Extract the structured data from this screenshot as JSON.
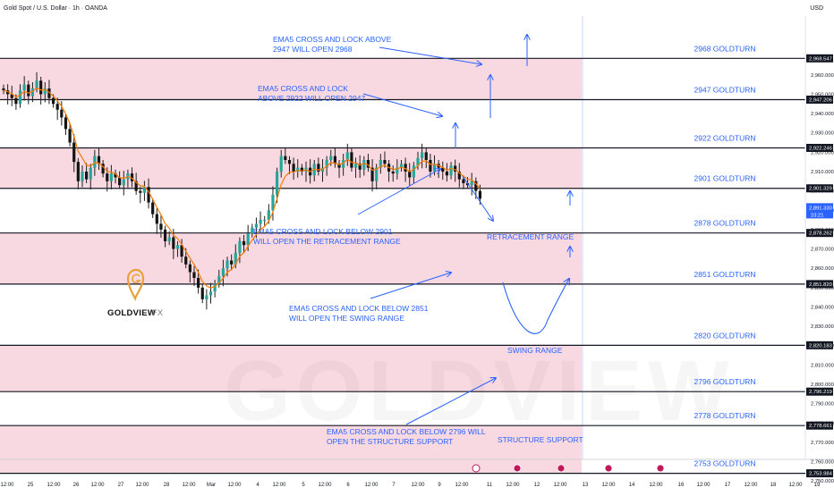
{
  "header": {
    "symbol": "Gold Spot / U.S. Dollar · 1h · OANDA",
    "currency": "USD"
  },
  "colors": {
    "zone": "#f9d9e1",
    "line": "#131722",
    "label": "#2962ff",
    "up": "#26a69a",
    "down": "#141414",
    "candle": "#1f1f1f",
    "ema": "#f57c00",
    "price_tag": "#2962ff"
  },
  "chart_data": {
    "type": "candlestick",
    "title": "Gold Spot / U.S. Dollar · 1h · OANDA",
    "ylim": [
      2748,
      2980
    ],
    "y_ticks": [
      2750,
      2760,
      2770,
      2780,
      2790,
      2800,
      2810,
      2820,
      2830,
      2840,
      2850,
      2860,
      2870,
      2880,
      2890,
      2900,
      2910,
      2920,
      2930,
      2940,
      2950,
      2960
    ],
    "x_ticks": [
      "12:00",
      "25",
      "12:00",
      "26",
      "12:00",
      "27",
      "12:00",
      "28",
      "12:00",
      "Mar",
      "12:00",
      "4",
      "12:00",
      "5",
      "12:00",
      "6",
      "12:00",
      "7",
      "12:00",
      "9",
      "12:00",
      "11",
      "12:00",
      "12",
      "12:00",
      "13",
      "12:00",
      "14",
      "12:00",
      "16",
      "12:00",
      "17",
      "12:00",
      "18",
      "12:00",
      "19",
      "12:00"
    ],
    "levels": [
      {
        "value": 2968.547,
        "tag": "2,968.547",
        "label": "2968 GOLDTURN"
      },
      {
        "value": 2947.206,
        "tag": "2,947.206",
        "label": "2947 GOLDTURN"
      },
      {
        "value": 2922.246,
        "tag": "2,922.246",
        "label": "2922 GOLDTURN"
      },
      {
        "value": 2901.329,
        "tag": "2,901.329",
        "label": "2901 GOLDTURN"
      },
      {
        "value": 2878.262,
        "tag": "2,878.262",
        "label": "2878 GOLDTURN"
      },
      {
        "value": 2851.82,
        "tag": "2,851.820",
        "label": "2851 GOLDTURN"
      },
      {
        "value": 2820.183,
        "tag": "2,820.183",
        "label": "2820 GOLDTURN"
      },
      {
        "value": 2796.219,
        "tag": "2,796.219",
        "label": "2796 GOLDTURN"
      },
      {
        "value": 2778.661,
        "tag": "2,778.661",
        "label": "2778 GOLDTURN"
      },
      {
        "value": 2753.984,
        "tag": "2,753.984",
        "label": "2753 GOLDTURN"
      }
    ],
    "current_price": {
      "value": 2891.33,
      "tag": "2,891.330",
      "countdown": "23:21"
    },
    "zones": [
      [
        2968.547,
        2947.206
      ],
      [
        2922.246,
        2901.329
      ],
      [
        2878.262,
        2851.82
      ],
      [
        2820.183,
        2796.219
      ],
      [
        2778.661,
        2753.984
      ]
    ],
    "series": [
      {
        "name": "price",
        "values": [
          2952,
          2950,
          2948,
          2945,
          2952,
          2955,
          2949,
          2953,
          2957,
          2950,
          2953,
          2948,
          2945,
          2942,
          2938,
          2932,
          2925,
          2915,
          2905,
          2910,
          2906,
          2912,
          2918,
          2914,
          2909,
          2905,
          2909,
          2907,
          2903,
          2906,
          2909,
          2905,
          2900,
          2899,
          2902,
          2894,
          2888,
          2883,
          2880,
          2874,
          2876,
          2870,
          2872,
          2866,
          2862,
          2858,
          2855,
          2850,
          2844,
          2846,
          2848,
          2852,
          2856,
          2860,
          2864,
          2862,
          2868,
          2874,
          2872,
          2878,
          2881,
          2883,
          2885,
          2885,
          2890,
          2898,
          2910,
          2918,
          2916,
          2914,
          2910,
          2912,
          2910,
          2912,
          2908,
          2914,
          2910,
          2912,
          2916,
          2918,
          2914,
          2912,
          2916,
          2920,
          2912,
          2914,
          2911,
          2916,
          2912,
          2905,
          2912,
          2916,
          2914,
          2910,
          2909,
          2912,
          2914,
          2910,
          2907,
          2913,
          2917,
          2920,
          2916,
          2910,
          2914,
          2912,
          2910,
          2908,
          2913,
          2910,
          2906,
          2904,
          2903,
          2905,
          2900,
          2896
        ]
      }
    ]
  },
  "annotations": [
    {
      "text": "EMA5 CROSS AND LOCK ABOVE"
    },
    {
      "text": "2947 WILL OPEN 2968"
    },
    {
      "text": "EMA5 CROSS AND LOCK"
    },
    {
      "text": "ABOVE 2922 WILL OPEN 2947"
    },
    {
      "text": "EMA5 CROSS AND LOCK BELOW 2901"
    },
    {
      "text": "WILL OPEN THE RETRACEMENT RANGE"
    },
    {
      "text": "EMA5 CROSS AND LOCK BELOW 2851"
    },
    {
      "text": "WILL OPEN THE SWING RANGE"
    },
    {
      "text": "EMA5 CROSS AND LOCK BELOW 2796 WILL"
    },
    {
      "text": "OPEN THE STRUCTURE SUPPORT"
    },
    {
      "text": "RETRACEMENT RANGE"
    },
    {
      "text": "SWING RANGE"
    },
    {
      "text": "STRUCTURE SUPPORT"
    }
  ],
  "logo": {
    "name": "GOLDVIEW",
    "suffix": "FX",
    "watermark": "GOLDVIEW"
  }
}
